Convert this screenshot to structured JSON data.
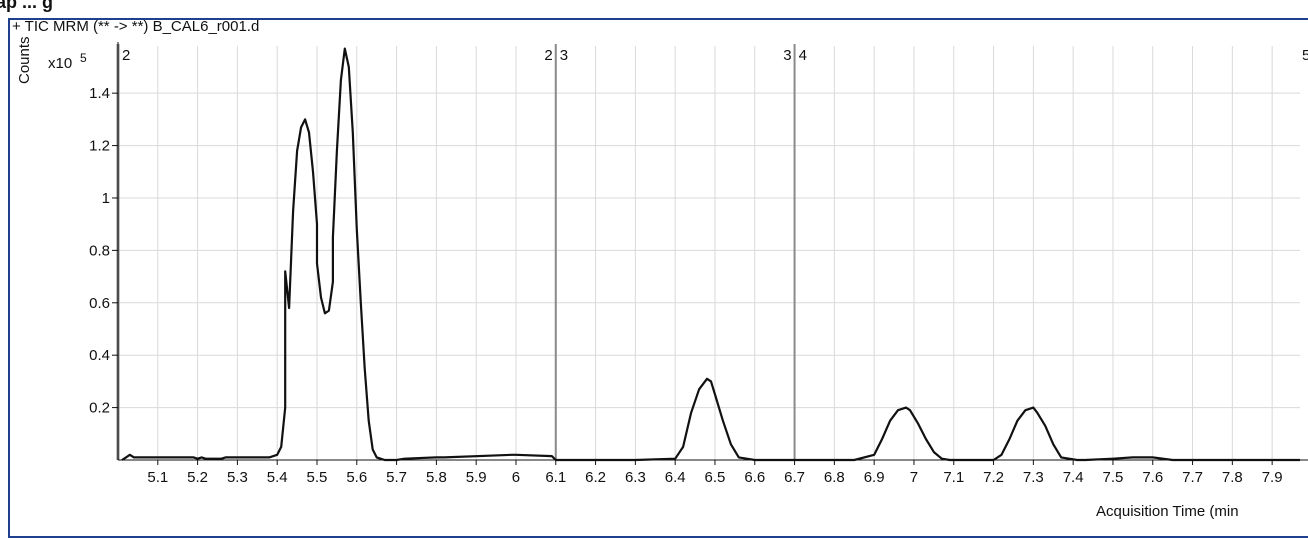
{
  "window": {
    "header_fragment": "ap ... g"
  },
  "chart_data": {
    "type": "line",
    "title": "+ TIC MRM (** -> **) B_CAL6_r001.d",
    "xlabel": "Acquisition Time (min",
    "ylabel": "Counts",
    "y_multiplier": "x10",
    "y_exponent": "5",
    "xlim": [
      5.0,
      7.97
    ],
    "ylim": [
      0,
      1.58
    ],
    "x_ticks": [
      5.1,
      5.2,
      5.3,
      5.4,
      5.5,
      5.6,
      5.7,
      5.8,
      5.9,
      6.0,
      6.1,
      6.2,
      6.3,
      6.4,
      6.5,
      6.6,
      6.7,
      6.8,
      6.9,
      7.0,
      7.1,
      7.2,
      7.3,
      7.4,
      7.5,
      7.6,
      7.7,
      7.8,
      7.9
    ],
    "x_tick_labels": [
      "5.1",
      "5.2",
      "5.3",
      "5.4",
      "5.5",
      "5.6",
      "5.7",
      "5.8",
      "5.9",
      "6",
      "6.1",
      "6.2",
      "6.3",
      "6.4",
      "6.5",
      "6.6",
      "6.7",
      "6.8",
      "6.9",
      "7",
      "7.1",
      "7.2",
      "7.3",
      "7.4",
      "7.5",
      "7.6",
      "7.7",
      "7.8",
      "7.9"
    ],
    "y_ticks": [
      0.2,
      0.4,
      0.6,
      0.8,
      1.0,
      1.2,
      1.4
    ],
    "y_tick_labels": [
      "0.2",
      "0.4",
      "0.6",
      "0.8",
      "1",
      "1.2",
      "1.4"
    ],
    "grid": true,
    "segment_markers": [
      {
        "x": 5.0,
        "left_label": "",
        "right_label": "2"
      },
      {
        "x": 6.1,
        "left_label": "2",
        "right_label": "3"
      },
      {
        "x": 6.7,
        "left_label": "3",
        "right_label": "4"
      }
    ],
    "edge_label": "5",
    "series": [
      {
        "x": [
          5.01,
          5.02,
          5.03,
          5.04,
          5.1,
          5.19,
          5.2,
          5.21,
          5.22,
          5.26,
          5.27,
          5.3,
          5.38,
          5.4,
          5.41,
          5.42,
          5.42,
          5.43,
          5.44,
          5.45,
          5.46,
          5.47,
          5.48,
          5.49,
          5.5,
          5.5,
          5.51,
          5.52,
          5.53,
          5.54,
          5.54,
          5.55,
          5.56,
          5.57,
          5.58,
          5.59,
          5.6,
          5.61,
          5.62,
          5.63,
          5.64,
          5.65,
          5.66,
          5.67,
          5.68,
          5.7,
          5.72,
          5.8,
          5.82,
          5.99,
          6.0,
          6.09,
          6.1,
          6.11,
          6.2,
          6.3,
          6.4,
          6.42,
          6.44,
          6.46,
          6.48,
          6.49,
          6.5,
          6.52,
          6.54,
          6.56,
          6.58,
          6.6,
          6.7,
          6.85,
          6.9,
          6.92,
          6.94,
          6.96,
          6.98,
          6.99,
          7.01,
          7.03,
          7.05,
          7.07,
          7.09,
          7.1,
          7.2,
          7.22,
          7.24,
          7.26,
          7.28,
          7.3,
          7.31,
          7.33,
          7.35,
          7.37,
          7.39,
          7.41,
          7.43,
          7.5,
          7.55,
          7.6,
          7.65,
          7.7,
          7.97
        ],
        "y": [
          0,
          0.01,
          0.02,
          0.01,
          0.01,
          0.01,
          0.005,
          0.01,
          0.005,
          0.005,
          0.01,
          0.01,
          0.01,
          0.02,
          0.05,
          0.2,
          0.72,
          0.58,
          0.95,
          1.18,
          1.27,
          1.3,
          1.25,
          1.1,
          0.9,
          0.75,
          0.62,
          0.56,
          0.57,
          0.68,
          0.85,
          1.18,
          1.45,
          1.57,
          1.5,
          1.25,
          0.88,
          0.6,
          0.35,
          0.15,
          0.04,
          0.01,
          0.005,
          0,
          0,
          0,
          0.005,
          0.01,
          0.01,
          0.02,
          0.02,
          0.015,
          0,
          0,
          0,
          0,
          0.005,
          0.05,
          0.18,
          0.27,
          0.31,
          0.3,
          0.25,
          0.15,
          0.06,
          0.01,
          0.005,
          0,
          0,
          0,
          0.02,
          0.08,
          0.15,
          0.19,
          0.2,
          0.19,
          0.14,
          0.08,
          0.03,
          0.005,
          0,
          0,
          0,
          0.02,
          0.08,
          0.15,
          0.19,
          0.2,
          0.18,
          0.13,
          0.06,
          0.01,
          0.005,
          0,
          0,
          0.005,
          0.01,
          0.01,
          0,
          0,
          0
        ]
      }
    ]
  }
}
